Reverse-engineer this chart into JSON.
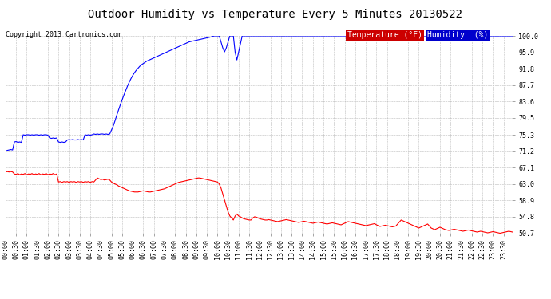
{
  "title": "Outdoor Humidity vs Temperature Every 5 Minutes 20130522",
  "copyright": "Copyright 2013 Cartronics.com",
  "legend_temp_label": "Temperature (°F)",
  "legend_humidity_label": "Humidity  (%)",
  "temp_color": "#ff0000",
  "humidity_color": "#0000ff",
  "legend_temp_bg": "#cc0000",
  "legend_humidity_bg": "#0000cc",
  "background_color": "#ffffff",
  "plot_bg_color": "#ffffff",
  "grid_color": "#bbbbbb",
  "ylim": [
    50.7,
    100.0
  ],
  "yticks": [
    50.7,
    54.8,
    58.9,
    63.0,
    67.1,
    71.2,
    75.3,
    79.5,
    83.6,
    87.7,
    91.8,
    95.9,
    100.0
  ],
  "title_fontsize": 10,
  "copyright_fontsize": 6,
  "tick_fontsize": 6,
  "legend_fontsize": 7,
  "n_points": 288,
  "humidity_data": [
    71.2,
    71.4,
    71.5,
    71.6,
    71.5,
    73.5,
    73.6,
    73.4,
    73.5,
    73.4,
    75.3,
    75.2,
    75.3,
    75.3,
    75.2,
    75.3,
    75.2,
    75.3,
    75.3,
    75.2,
    75.3,
    75.2,
    75.3,
    75.3,
    75.2,
    74.5,
    74.4,
    74.5,
    74.4,
    74.5,
    73.5,
    73.4,
    73.5,
    73.4,
    73.5,
    74.0,
    74.1,
    74.0,
    74.1,
    74.0,
    74.0,
    74.1,
    74.0,
    74.1,
    74.0,
    75.3,
    75.2,
    75.3,
    75.2,
    75.3,
    75.5,
    75.4,
    75.5,
    75.4,
    75.5,
    75.5,
    75.4,
    75.5,
    75.4,
    75.5,
    76.5,
    77.5,
    78.8,
    80.2,
    81.5,
    82.8,
    84.0,
    85.2,
    86.3,
    87.4,
    88.4,
    89.3,
    90.1,
    90.8,
    91.4,
    91.9,
    92.4,
    92.8,
    93.1,
    93.4,
    93.7,
    93.9,
    94.1,
    94.3,
    94.5,
    94.7,
    94.9,
    95.1,
    95.3,
    95.5,
    95.7,
    95.9,
    96.1,
    96.3,
    96.5,
    96.7,
    96.9,
    97.1,
    97.3,
    97.5,
    97.7,
    97.9,
    98.1,
    98.3,
    98.5,
    98.6,
    98.7,
    98.8,
    98.9,
    99.0,
    99.1,
    99.2,
    99.3,
    99.4,
    99.5,
    99.6,
    99.7,
    99.8,
    100.0,
    100.0,
    100.0,
    100.0,
    98.5,
    97.0,
    96.0,
    97.0,
    98.5,
    100.0,
    100.0,
    100.0,
    95.9,
    94.0,
    96.0,
    98.0,
    100.0,
    100.0,
    100.0,
    100.0,
    100.0,
    100.0,
    100.0,
    100.0,
    100.0,
    100.0,
    100.0,
    100.0,
    100.0,
    100.0,
    100.0,
    100.0,
    100.0,
    100.0,
    100.0,
    100.0,
    100.0,
    100.0,
    100.0,
    100.0,
    100.0,
    100.0,
    100.0,
    100.0,
    100.0,
    100.0,
    100.0,
    100.0,
    100.0,
    100.0,
    100.0,
    100.0,
    100.0,
    100.0,
    100.0,
    100.0,
    100.0,
    100.0,
    100.0,
    100.0,
    100.0,
    100.0,
    100.0,
    100.0,
    100.0,
    100.0,
    100.0,
    100.0,
    100.0,
    100.0,
    100.0,
    100.0,
    100.0,
    100.0,
    100.0,
    100.0,
    100.0,
    100.0,
    100.0,
    100.0,
    100.0,
    100.0,
    100.0,
    100.0,
    100.0,
    100.0,
    100.0,
    100.0,
    100.0,
    100.0,
    100.0,
    100.0,
    100.0,
    100.0,
    100.0,
    100.0,
    100.0,
    100.0,
    100.0,
    100.0,
    100.0,
    100.0,
    100.0,
    100.0,
    100.0,
    100.0,
    100.0,
    100.0,
    100.0,
    100.0,
    100.0,
    100.0,
    100.0,
    100.0,
    100.0,
    100.0,
    100.0,
    100.0,
    100.0,
    100.0,
    100.0,
    100.0,
    100.0,
    100.0,
    100.0,
    100.0,
    100.0,
    100.0,
    100.0,
    100.0,
    100.0,
    100.0,
    100.0,
    100.0,
    100.0,
    100.0,
    100.0,
    100.0,
    100.0,
    100.0,
    100.0,
    100.0,
    100.0,
    100.0,
    100.0,
    100.0,
    100.0,
    100.0,
    100.0,
    100.0,
    100.0,
    100.0,
    100.0,
    100.0,
    100.0,
    100.0,
    100.0,
    100.0,
    100.0,
    100.0,
    100.0,
    100.0,
    100.0,
    100.0,
    100.0,
    100.0,
    100.0,
    100.0,
    100.0,
    100.0
  ],
  "temp_data": [
    66.0,
    66.1,
    66.0,
    66.1,
    66.0,
    65.5,
    65.4,
    65.6,
    65.3,
    65.5,
    65.4,
    65.6,
    65.3,
    65.5,
    65.4,
    65.6,
    65.3,
    65.5,
    65.4,
    65.6,
    65.3,
    65.5,
    65.4,
    65.6,
    65.3,
    65.5,
    65.4,
    65.6,
    65.3,
    65.5,
    63.5,
    63.6,
    63.4,
    63.6,
    63.5,
    63.6,
    63.4,
    63.6,
    63.5,
    63.6,
    63.4,
    63.6,
    63.5,
    63.6,
    63.4,
    63.6,
    63.5,
    63.6,
    63.4,
    63.6,
    63.5,
    64.0,
    64.5,
    64.3,
    64.1,
    64.2,
    64.0,
    64.1,
    64.2,
    64.0,
    63.5,
    63.2,
    63.0,
    62.8,
    62.5,
    62.3,
    62.1,
    61.9,
    61.7,
    61.5,
    61.3,
    61.2,
    61.1,
    61.0,
    61.0,
    61.0,
    61.1,
    61.2,
    61.3,
    61.2,
    61.1,
    61.0,
    61.0,
    61.1,
    61.2,
    61.3,
    61.4,
    61.5,
    61.6,
    61.7,
    61.8,
    62.0,
    62.2,
    62.4,
    62.6,
    62.8,
    63.0,
    63.2,
    63.4,
    63.5,
    63.6,
    63.7,
    63.8,
    63.9,
    64.0,
    64.1,
    64.2,
    64.3,
    64.4,
    64.5,
    64.5,
    64.4,
    64.3,
    64.2,
    64.1,
    64.0,
    63.9,
    63.8,
    63.7,
    63.6,
    63.5,
    63.0,
    62.0,
    60.5,
    59.0,
    57.5,
    56.0,
    55.0,
    54.5,
    54.0,
    55.0,
    55.5,
    55.0,
    54.8,
    54.5,
    54.3,
    54.2,
    54.1,
    54.0,
    54.0,
    54.5,
    54.8,
    54.7,
    54.5,
    54.3,
    54.2,
    54.1,
    54.0,
    54.0,
    54.1,
    54.0,
    53.9,
    53.8,
    53.7,
    53.6,
    53.7,
    53.8,
    53.9,
    54.0,
    54.1,
    54.0,
    53.9,
    53.8,
    53.7,
    53.6,
    53.5,
    53.4,
    53.5,
    53.6,
    53.7,
    53.6,
    53.5,
    53.4,
    53.3,
    53.2,
    53.3,
    53.4,
    53.5,
    53.4,
    53.3,
    53.2,
    53.1,
    53.0,
    53.1,
    53.2,
    53.3,
    53.2,
    53.1,
    53.0,
    52.9,
    52.8,
    53.0,
    53.2,
    53.4,
    53.6,
    53.5,
    53.4,
    53.3,
    53.2,
    53.1,
    53.0,
    52.9,
    52.8,
    52.7,
    52.6,
    52.7,
    52.8,
    52.9,
    53.0,
    53.1,
    52.8,
    52.6,
    52.4,
    52.5,
    52.6,
    52.7,
    52.6,
    52.5,
    52.4,
    52.3,
    52.4,
    52.5,
    53.0,
    53.5,
    54.0,
    53.8,
    53.6,
    53.4,
    53.2,
    53.0,
    52.8,
    52.6,
    52.4,
    52.2,
    52.0,
    52.2,
    52.4,
    52.6,
    52.8,
    53.0,
    52.5,
    52.0,
    51.8,
    51.6,
    51.8,
    52.0,
    52.2,
    52.0,
    51.8,
    51.6,
    51.5,
    51.4,
    51.5,
    51.6,
    51.7,
    51.6,
    51.5,
    51.4,
    51.3,
    51.2,
    51.3,
    51.4,
    51.5,
    51.4,
    51.3,
    51.2,
    51.1,
    51.0,
    51.1,
    51.2,
    51.1,
    51.0,
    50.9,
    50.8,
    50.9,
    51.0,
    51.1,
    51.0,
    50.9,
    50.8,
    50.7,
    50.8,
    50.9,
    51.0,
    51.1,
    51.2,
    51.1,
    51.0
  ]
}
